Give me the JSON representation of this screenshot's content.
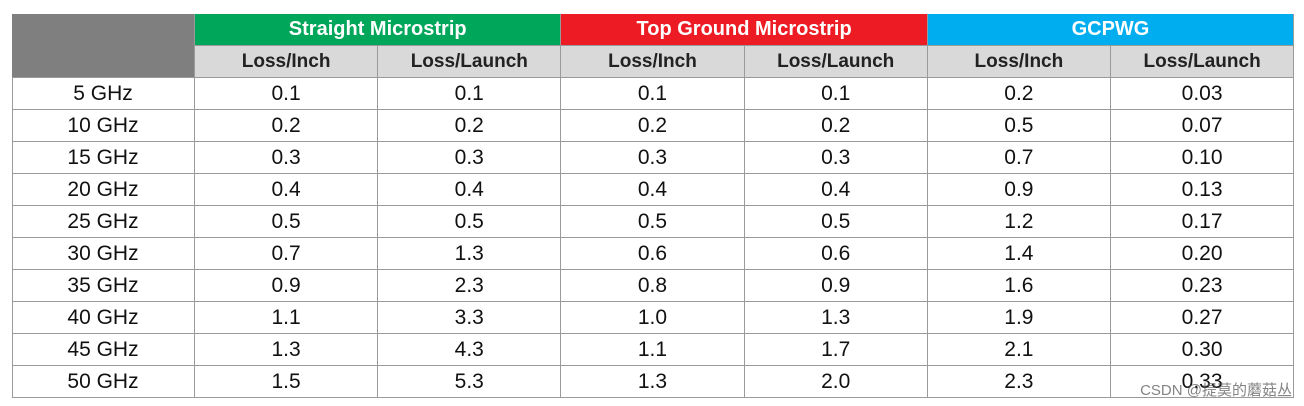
{
  "table": {
    "groups": [
      {
        "title": "Straight Microstrip",
        "color": "#00a65a",
        "columns": [
          "Loss/Inch",
          "Loss/Launch"
        ]
      },
      {
        "title": "Top Ground Microstrip",
        "color": "#ed1c24",
        "columns": [
          "Loss/Inch",
          "Loss/Launch"
        ]
      },
      {
        "title": "GCPWG",
        "color": "#00aeef",
        "columns": [
          "Loss/Inch",
          "Loss/Launch"
        ]
      }
    ],
    "rows": [
      {
        "label": "5 GHz",
        "cells": [
          "0.1",
          "0.1",
          "0.1",
          "0.1",
          "0.2",
          "0.03"
        ]
      },
      {
        "label": "10 GHz",
        "cells": [
          "0.2",
          "0.2",
          "0.2",
          "0.2",
          "0.5",
          "0.07"
        ]
      },
      {
        "label": "15 GHz",
        "cells": [
          "0.3",
          "0.3",
          "0.3",
          "0.3",
          "0.7",
          "0.10"
        ]
      },
      {
        "label": "20 GHz",
        "cells": [
          "0.4",
          "0.4",
          "0.4",
          "0.4",
          "0.9",
          "0.13"
        ]
      },
      {
        "label": "25 GHz",
        "cells": [
          "0.5",
          "0.5",
          "0.5",
          "0.5",
          "1.2",
          "0.17"
        ]
      },
      {
        "label": "30 GHz",
        "cells": [
          "0.7",
          "1.3",
          "0.6",
          "0.6",
          "1.4",
          "0.20"
        ]
      },
      {
        "label": "35 GHz",
        "cells": [
          "0.9",
          "2.3",
          "0.8",
          "0.9",
          "1.6",
          "0.23"
        ]
      },
      {
        "label": "40 GHz",
        "cells": [
          "1.1",
          "3.3",
          "1.0",
          "1.3",
          "1.9",
          "0.27"
        ]
      },
      {
        "label": "45 GHz",
        "cells": [
          "1.3",
          "4.3",
          "1.1",
          "1.7",
          "2.1",
          "0.30"
        ]
      },
      {
        "label": "50 GHz",
        "cells": [
          "1.5",
          "5.3",
          "1.3",
          "2.0",
          "2.3",
          "0.33"
        ]
      }
    ]
  },
  "watermark": "CSDN @提莫的蘑菇丛"
}
